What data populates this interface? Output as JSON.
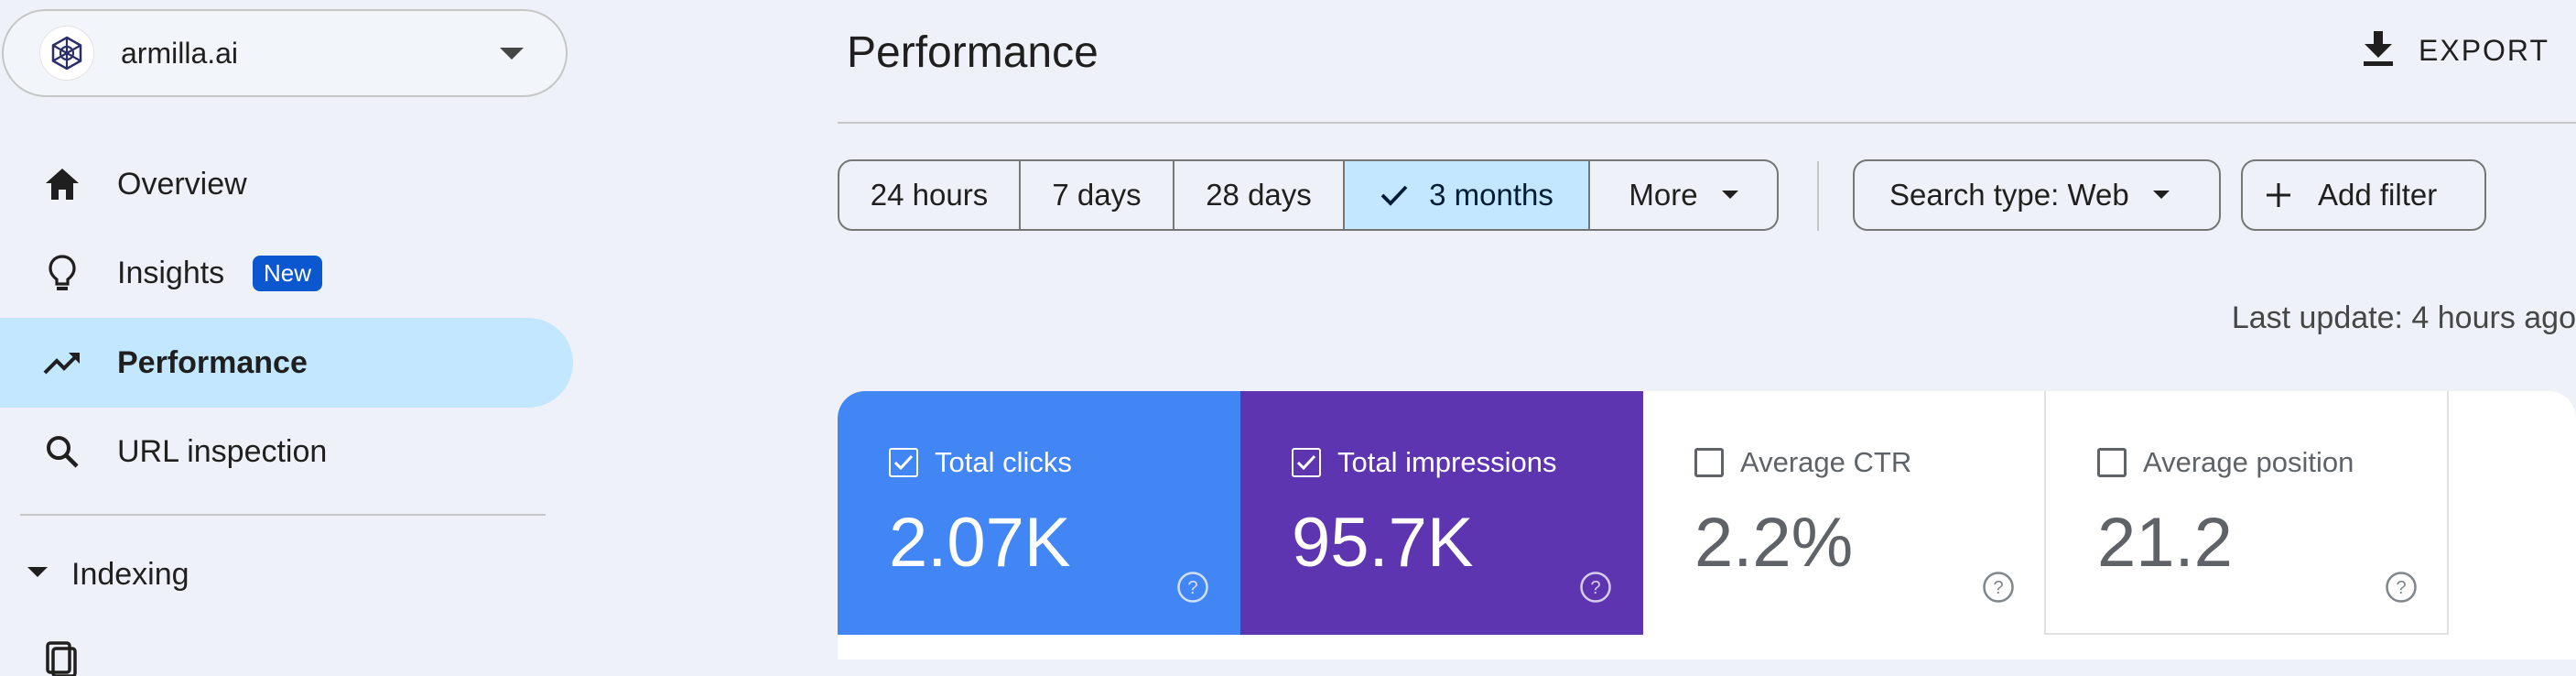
{
  "property": {
    "name": "armilla.ai"
  },
  "sidebar": {
    "items": [
      {
        "label": "Overview",
        "icon": "home-icon"
      },
      {
        "label": "Insights",
        "icon": "lightbulb-icon",
        "badge": "New"
      },
      {
        "label": "Performance",
        "icon": "trending-up-icon",
        "active": true
      },
      {
        "label": "URL inspection",
        "icon": "search-icon"
      }
    ],
    "section": {
      "label": "Indexing"
    }
  },
  "header": {
    "title": "Performance",
    "export_label": "EXPORT"
  },
  "date_ranges": {
    "options": [
      "24 hours",
      "7 days",
      "28 days",
      "3 months",
      "More"
    ],
    "selected": "3 months"
  },
  "filters": {
    "search_type": "Search type: Web",
    "add_filter": "Add filter"
  },
  "last_update": "Last update: 4 hours ago",
  "metrics": [
    {
      "label": "Total clicks",
      "value": "2.07K",
      "checked": true,
      "color": "#4285f4"
    },
    {
      "label": "Total impressions",
      "value": "95.7K",
      "checked": true,
      "color": "#5e35b1"
    },
    {
      "label": "Average CTR",
      "value": "2.2%",
      "checked": false
    },
    {
      "label": "Average position",
      "value": "21.2",
      "checked": false
    }
  ],
  "colors": {
    "accent": "#0b57d0",
    "selection": "#c2e7ff",
    "background": "#eef2f8"
  }
}
